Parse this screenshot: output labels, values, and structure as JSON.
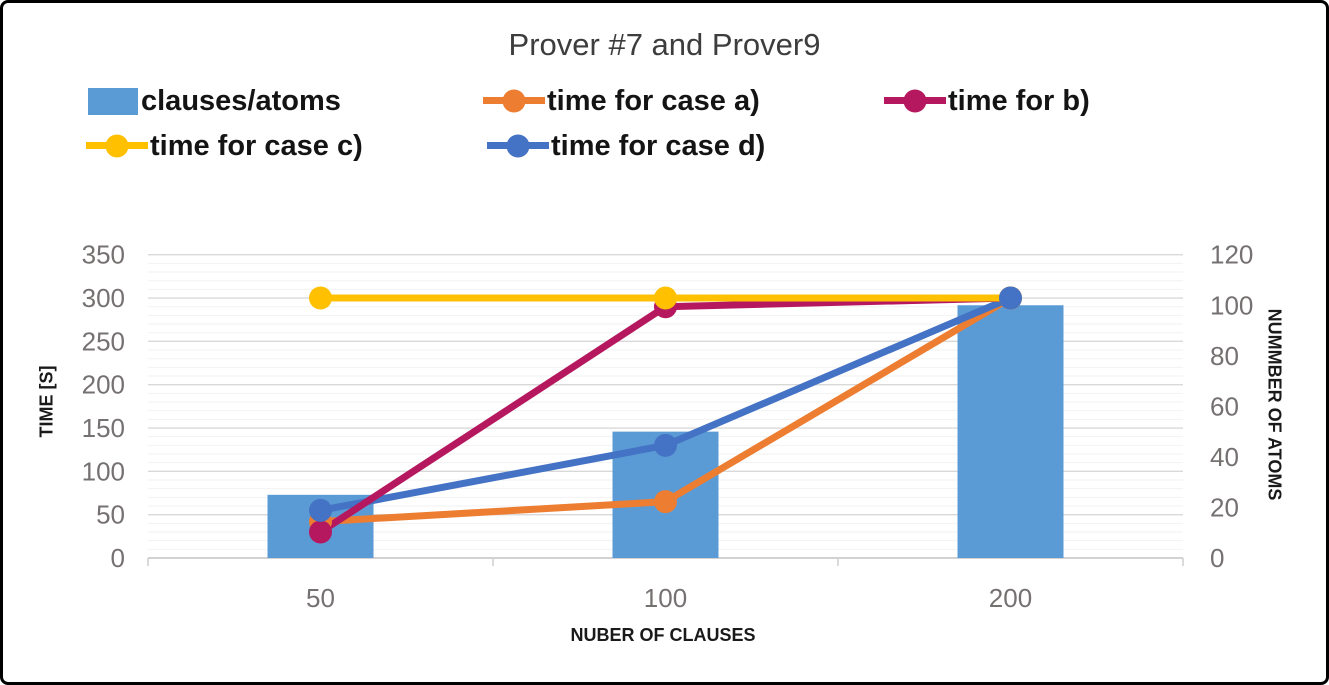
{
  "chart_data": {
    "type": "combo-bar-line",
    "title": "Prover #7 and Prover9",
    "x_title": "NUBER OF CLAUSES",
    "y_left_title": "TIME [S]",
    "y_right_title": "NUMMBER OF ATOMS",
    "categories": [
      "50",
      "100",
      "200"
    ],
    "y_left": {
      "min": 0,
      "max": 350,
      "step": 50,
      "minor_step": 10,
      "ticks": [
        "0",
        "50",
        "100",
        "150",
        "200",
        "250",
        "300",
        "350"
      ]
    },
    "y_right": {
      "min": 0,
      "max": 120,
      "step": 20,
      "ticks": [
        "0",
        "20",
        "40",
        "60",
        "80",
        "100",
        "120"
      ]
    },
    "bar_series": {
      "name": "clauses/atoms",
      "axis": "right",
      "color": "#5B9BD5",
      "values": [
        25,
        50,
        100
      ]
    },
    "line_series": [
      {
        "name": "time for case a)",
        "axis": "left",
        "color": "#ED7D31",
        "values": [
          42,
          65,
          300
        ]
      },
      {
        "name": "time for b)",
        "axis": "left",
        "color": "#B5185E",
        "values": [
          30,
          290,
          300
        ]
      },
      {
        "name": "time for case c)",
        "axis": "left",
        "color": "#FFC000",
        "values": [
          300,
          300,
          300
        ]
      },
      {
        "name": "time for case d)",
        "axis": "left",
        "color": "#4472C4",
        "values": [
          55,
          130,
          300
        ]
      }
    ],
    "legend_position": "top-left-two-rows",
    "grid": {
      "major_color": "#D9D9D9",
      "minor_color": "#F2F2F2",
      "axis_color": "#D2D2D2",
      "tick_label_color": "#767171"
    }
  },
  "legend": {
    "items": [
      {
        "label": "clauses/atoms",
        "type": "bar",
        "color": "#5B9BD5"
      },
      {
        "label": "time for case a)",
        "type": "line-marker",
        "color": "#ED7D31"
      },
      {
        "label": "time for b)",
        "type": "line-marker",
        "color": "#B5185E"
      },
      {
        "label": "time for case c)",
        "type": "line-marker",
        "color": "#FFC000"
      },
      {
        "label": "time for case d)",
        "type": "line-marker",
        "color": "#4472C4"
      }
    ]
  }
}
